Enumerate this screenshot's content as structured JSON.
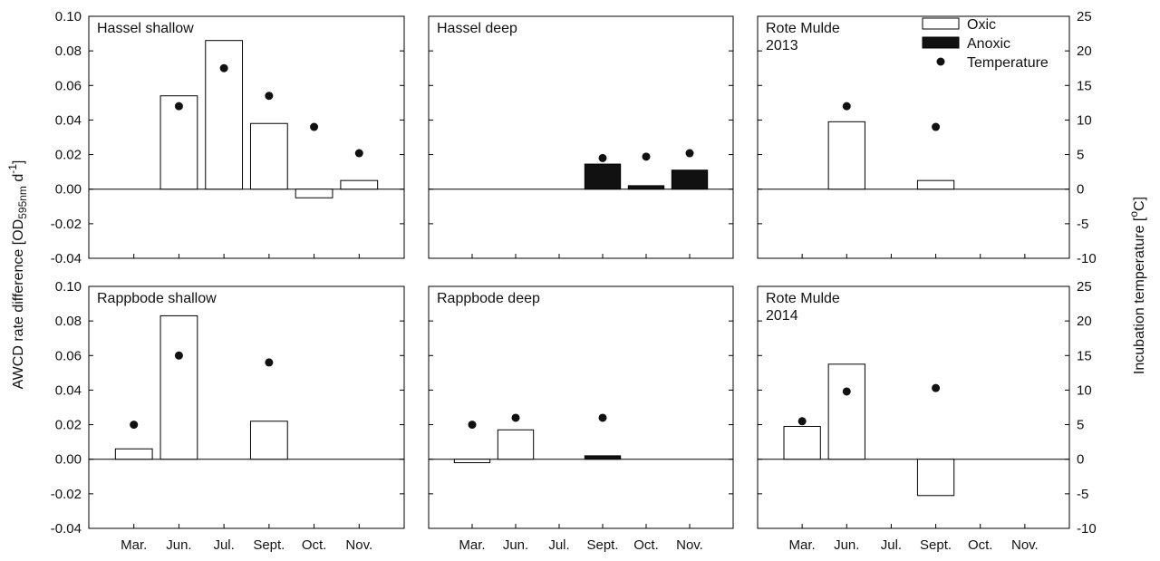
{
  "chart_data": {
    "type": "bar",
    "categories": [
      "Mar.",
      "Jun.",
      "Jul.",
      "Sept.",
      "Oct.",
      "Nov."
    ],
    "y_left_label_main": "AWCD rate difference [OD",
    "y_left_label_sub": "595nm",
    "y_left_label_unit": " d",
    "y_left_label_sup": "-1",
    "y_left_label_end": "]",
    "y_right_label_main": "Incubation temperature [",
    "y_right_label_sup": "o",
    "y_right_label_end": "C]",
    "ylim_left": [
      -0.04,
      0.1
    ],
    "ylim_right": [
      -10,
      25
    ],
    "left_ticks": [
      "0.10",
      "0.08",
      "0.06",
      "0.04",
      "0.02",
      "0.00",
      "-0.02",
      "-0.04"
    ],
    "right_ticks": [
      "25",
      "20",
      "15",
      "10",
      "5",
      "0",
      "-5",
      "-10"
    ],
    "legend": [
      {
        "label": "Oxic",
        "kind": "open-bar"
      },
      {
        "label": "Anoxic",
        "kind": "filled-bar"
      },
      {
        "label": "Temperature",
        "kind": "dot"
      }
    ],
    "panels": [
      {
        "title_lines": [
          "Hassel shallow"
        ],
        "bars": [
          {
            "category": "Jun.",
            "condition": "Oxic",
            "value": 0.054
          },
          {
            "category": "Jul.",
            "condition": "Oxic",
            "value": 0.086
          },
          {
            "category": "Sept.",
            "condition": "Oxic",
            "value": 0.038
          },
          {
            "category": "Oct.",
            "condition": "Oxic",
            "value": -0.005
          },
          {
            "category": "Nov.",
            "condition": "Oxic",
            "value": 0.005
          }
        ],
        "temperature": [
          {
            "category": "Jun.",
            "value": 12
          },
          {
            "category": "Jul.",
            "value": 17.5
          },
          {
            "category": "Sept.",
            "value": 13.5
          },
          {
            "category": "Oct.",
            "value": 9
          },
          {
            "category": "Nov.",
            "value": 5.2
          }
        ]
      },
      {
        "title_lines": [
          "Hassel deep"
        ],
        "bars": [
          {
            "category": "Sept.",
            "condition": "Anoxic",
            "value": 0.0145
          },
          {
            "category": "Oct.",
            "condition": "Anoxic",
            "value": 0.002
          },
          {
            "category": "Nov.",
            "condition": "Anoxic",
            "value": 0.011
          }
        ],
        "temperature": [
          {
            "category": "Sept.",
            "value": 4.5
          },
          {
            "category": "Oct.",
            "value": 4.7
          },
          {
            "category": "Nov.",
            "value": 5.2
          }
        ]
      },
      {
        "title_lines": [
          "Rote Mulde",
          "2013"
        ],
        "bars": [
          {
            "category": "Jun.",
            "condition": "Oxic",
            "value": 0.039
          },
          {
            "category": "Sept.",
            "condition": "Oxic",
            "value": 0.005
          }
        ],
        "temperature": [
          {
            "category": "Jun.",
            "value": 12
          },
          {
            "category": "Sept.",
            "value": 9
          }
        ]
      },
      {
        "title_lines": [
          "Rappbode shallow"
        ],
        "bars": [
          {
            "category": "Mar.",
            "condition": "Oxic",
            "value": 0.006
          },
          {
            "category": "Jun.",
            "condition": "Oxic",
            "value": 0.083
          },
          {
            "category": "Sept.",
            "condition": "Oxic",
            "value": 0.022
          }
        ],
        "temperature": [
          {
            "category": "Mar.",
            "value": 5
          },
          {
            "category": "Jun.",
            "value": 15
          },
          {
            "category": "Sept.",
            "value": 14
          }
        ]
      },
      {
        "title_lines": [
          "Rappbode deep"
        ],
        "bars": [
          {
            "category": "Mar.",
            "condition": "Oxic",
            "value": -0.002
          },
          {
            "category": "Jun.",
            "condition": "Oxic",
            "value": 0.017
          },
          {
            "category": "Sept.",
            "condition": "Anoxic",
            "value": 0.002
          }
        ],
        "temperature": [
          {
            "category": "Mar.",
            "value": 5
          },
          {
            "category": "Jun.",
            "value": 6
          },
          {
            "category": "Sept.",
            "value": 6
          }
        ]
      },
      {
        "title_lines": [
          "Rote Mulde",
          "2014"
        ],
        "bars": [
          {
            "category": "Mar.",
            "condition": "Oxic",
            "value": 0.019
          },
          {
            "category": "Jun.",
            "condition": "Oxic",
            "value": 0.055
          },
          {
            "category": "Sept.",
            "condition": "Oxic",
            "value": -0.021
          }
        ],
        "temperature": [
          {
            "category": "Mar.",
            "value": 5.5
          },
          {
            "category": "Jun.",
            "value": 9.8
          },
          {
            "category": "Sept.",
            "value": 10.3
          }
        ]
      }
    ]
  }
}
